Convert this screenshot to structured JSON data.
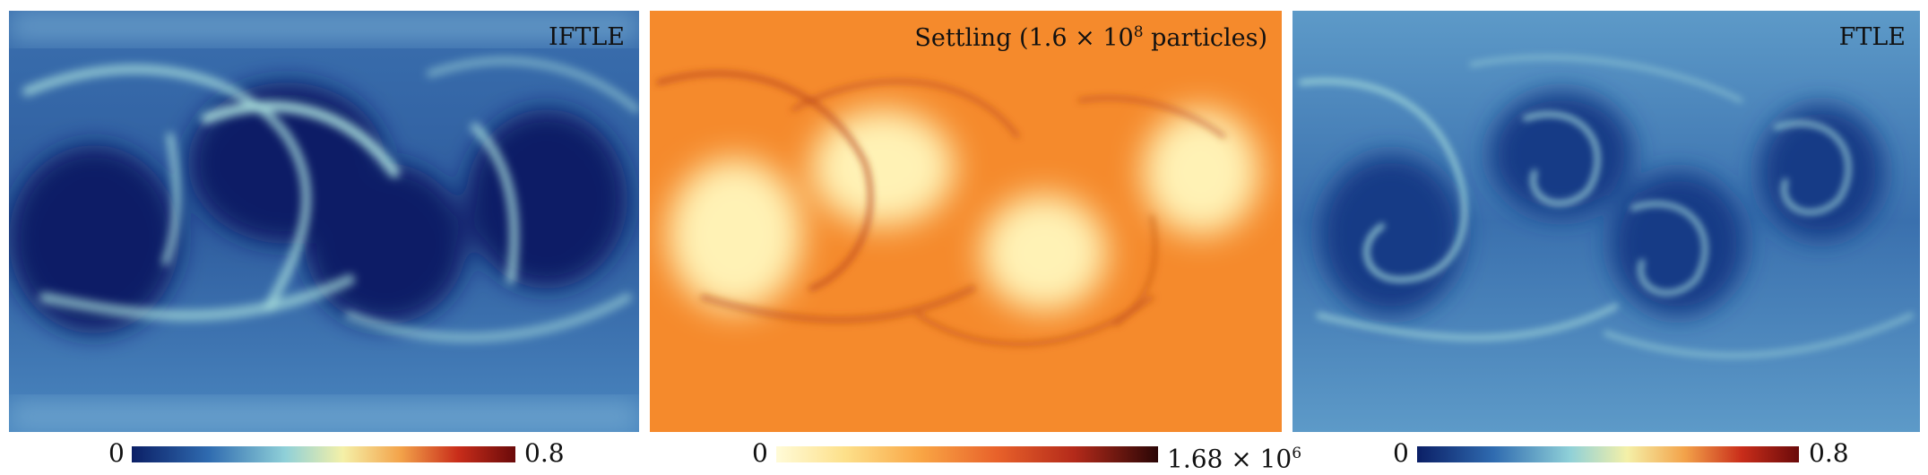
{
  "panels": [
    {
      "label": "IFTLE",
      "colormap": "RdYlBu_r",
      "colorbar": {
        "min": "0",
        "max": "0.8"
      }
    },
    {
      "label_main": "Settling (1.6 × 10",
      "label_exp": "8",
      "label_tail": " particles)",
      "colormap": "YlOrRd",
      "colorbar": {
        "min": "0",
        "max_main": "1.68 × 10",
        "max_exp": "6"
      }
    },
    {
      "label": "FTLE",
      "colormap": "RdYlBu_r",
      "colorbar": {
        "min": "0",
        "max": "0.8"
      }
    }
  ],
  "colors": {
    "ftle_base": "#3f74b0",
    "ftle_dark": "#0b1f66",
    "ftle_bright": "#a5e0dc",
    "settling_base": "#f58a2c",
    "settling_bright": "#fff0b0",
    "settling_dark": "#b03d12"
  }
}
